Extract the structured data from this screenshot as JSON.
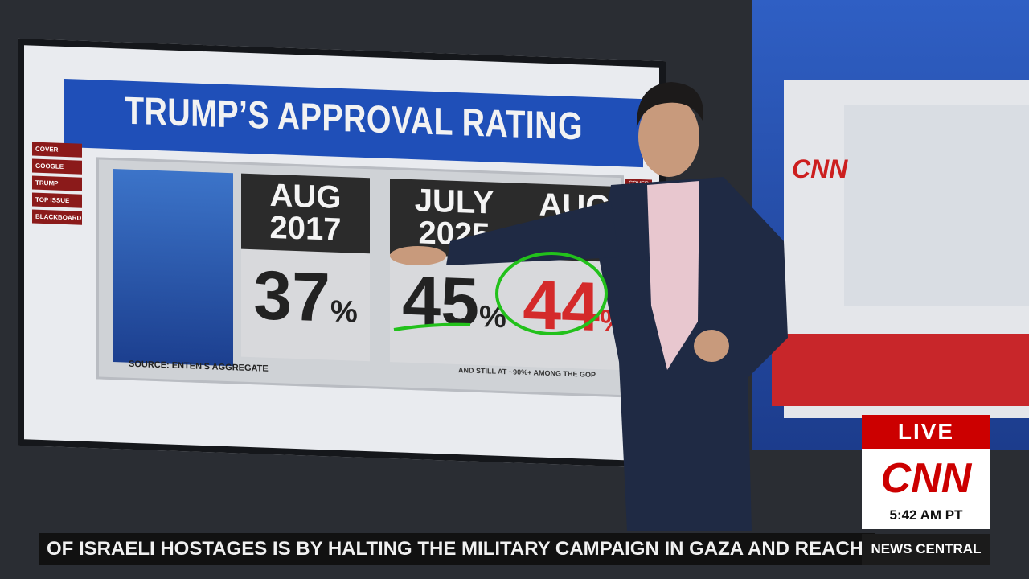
{
  "graphic": {
    "title": "TRUMP’S APPROVAL RATING",
    "menu": [
      "COVER",
      "GOOGLE",
      "TRUMP",
      "TOP ISSUE",
      "BLACKBOARD"
    ],
    "corner_tab": "COVER",
    "panels": [
      {
        "header": [
          "AUG",
          "2017"
        ],
        "value": 37,
        "unit": "%"
      },
      {
        "header": [
          "JULY",
          "2025"
        ],
        "value": 45,
        "unit": "%"
      },
      {
        "header": [
          "AUG"
        ],
        "value": 44,
        "unit": "%"
      }
    ],
    "note": "AND STILL AT ~90%+ AMONG THE GOP",
    "source": "SOURCE: ENTEN'S AGGREGATE"
  },
  "wall_logo": "CNN",
  "bug": {
    "live": "LIVE",
    "logo": "CNN",
    "time": "5:42 AM PT",
    "show": "NEWS CENTRAL"
  },
  "ticker": "OF ISRAELI HOSTAGES IS BY HALTING THE MILITARY CAMPAIGN IN GAZA AND REACH"
}
